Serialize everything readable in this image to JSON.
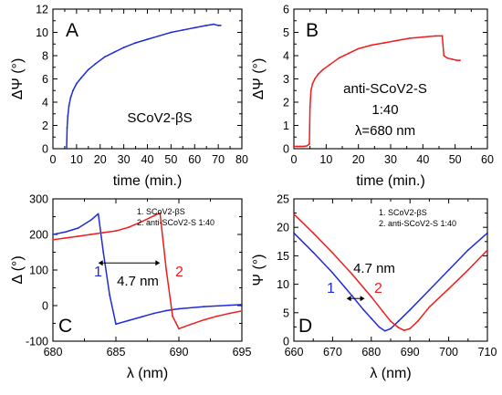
{
  "colors": {
    "blue": "#1f2bd6",
    "red": "#ee1c1c",
    "axis": "#000000"
  },
  "chart_data": [
    {
      "id": "A",
      "type": "line",
      "panel_label": "A",
      "xlabel": "time (min.)",
      "ylabel": "ΔΨ (°)",
      "xlim": [
        0,
        80
      ],
      "ylim": [
        0,
        12
      ],
      "xticks": [
        "0",
        "10",
        "20",
        "30",
        "40",
        "50",
        "60",
        "70",
        "80"
      ],
      "yticks": [
        "0",
        "2",
        "4",
        "6",
        "8",
        "10",
        "12"
      ],
      "annotations": [
        "SCoV2-βS"
      ],
      "series": [
        {
          "color": "#1f2bd6",
          "x": [
            5.8,
            6.0,
            6.3,
            6.8,
            7.5,
            8.5,
            10,
            12,
            15,
            18,
            22,
            26,
            30,
            35,
            40,
            45,
            50,
            55,
            60,
            65,
            68,
            70,
            71
          ],
          "y": [
            0,
            1.8,
            2.8,
            3.7,
            4.4,
            5.0,
            5.6,
            6.1,
            6.8,
            7.3,
            7.9,
            8.3,
            8.7,
            9.1,
            9.4,
            9.7,
            10.0,
            10.2,
            10.4,
            10.6,
            10.7,
            10.6,
            10.6
          ]
        }
      ]
    },
    {
      "id": "B",
      "type": "line",
      "panel_label": "B",
      "xlabel": "time (min.)",
      "ylabel": "ΔΨ (°)",
      "xlim": [
        0,
        60
      ],
      "ylim": [
        0,
        6
      ],
      "xticks": [
        "0",
        "10",
        "20",
        "30",
        "40",
        "50",
        "60"
      ],
      "yticks": [
        "0",
        "1",
        "2",
        "3",
        "4",
        "5",
        "6"
      ],
      "annotations": [
        "anti-SCoV2-S",
        "1:40",
        "λ=680 nm"
      ],
      "series": [
        {
          "color": "#ee1c1c",
          "x": [
            0,
            1,
            2,
            3,
            4,
            4.8,
            5.0,
            5.3,
            5.8,
            6.5,
            7.5,
            9,
            11,
            14,
            17,
            20,
            24,
            28,
            32,
            36,
            40,
            44,
            46,
            46.5,
            47.5,
            49,
            50.5,
            51.5
          ],
          "y": [
            0.1,
            0.1,
            0.1,
            0.1,
            0.12,
            0.2,
            1.8,
            2.5,
            2.8,
            3.0,
            3.2,
            3.4,
            3.6,
            3.9,
            4.1,
            4.3,
            4.45,
            4.55,
            4.65,
            4.75,
            4.8,
            4.85,
            4.85,
            4.0,
            3.9,
            3.85,
            3.8,
            3.8
          ]
        }
      ]
    },
    {
      "id": "C",
      "type": "line",
      "panel_label": "C",
      "xlabel": "λ (nm)",
      "ylabel": "Δ (°)",
      "xlim": [
        680,
        695
      ],
      "ylim": [
        -100,
        300
      ],
      "xticks": [
        "680",
        "685",
        "690",
        "695"
      ],
      "yticks": [
        "-100",
        "0",
        "100",
        "200",
        "300"
      ],
      "legend": [
        "1. SCoV2-βS",
        "2. anti-SCoV2-S 1:40"
      ],
      "legend_position": "top-right",
      "annotations": [
        "4.7 nm"
      ],
      "curve_labels": [
        "1",
        "2"
      ],
      "series": [
        {
          "color": "#1f2bd6",
          "x": [
            680,
            681,
            682,
            683,
            683.6,
            684.0,
            684.5,
            685.0,
            686,
            687,
            688,
            689,
            690,
            692,
            694,
            695
          ],
          "y": [
            200,
            207,
            218,
            240,
            258,
            150,
            30,
            -52,
            -42,
            -32,
            -22,
            -14,
            -9,
            -3,
            1,
            3
          ]
        },
        {
          "color": "#ee1c1c",
          "x": [
            680,
            681,
            682,
            683,
            684,
            685,
            686,
            687,
            688,
            688.5,
            689,
            689.5,
            690,
            691,
            692,
            693,
            694,
            695
          ],
          "y": [
            185,
            190,
            195,
            200,
            205,
            210,
            220,
            235,
            252,
            260,
            100,
            -30,
            -65,
            -52,
            -40,
            -30,
            -22,
            -15
          ]
        }
      ]
    },
    {
      "id": "D",
      "type": "line",
      "panel_label": "D",
      "xlabel": "λ (nm)",
      "ylabel": "Ψ (°)",
      "xlim": [
        660,
        710
      ],
      "ylim": [
        0,
        25
      ],
      "xticks": [
        "660",
        "670",
        "680",
        "690",
        "700",
        "710"
      ],
      "yticks": [
        "0",
        "5",
        "10",
        "15",
        "20",
        "25"
      ],
      "legend": [
        "1. SCoV2-βS",
        "2. anti-SCoV2-S 1:40"
      ],
      "legend_position": "top-right",
      "annotations": [
        "4.7 nm"
      ],
      "curve_labels": [
        "1",
        "2"
      ],
      "series": [
        {
          "color": "#1f2bd6",
          "x": [
            660,
            665,
            670,
            675,
            678,
            680,
            682,
            683.5,
            685,
            687,
            690,
            695,
            700,
            705,
            710
          ],
          "y": [
            19,
            15.6,
            12.0,
            8.0,
            5.5,
            4.0,
            2.5,
            1.8,
            2.2,
            3.5,
            5.5,
            9.0,
            12.5,
            16.0,
            19.0
          ]
        },
        {
          "color": "#ee1c1c",
          "x": [
            660,
            665,
            670,
            675,
            680,
            683,
            685,
            687,
            688.5,
            690,
            692,
            695,
            700,
            705,
            710
          ],
          "y": [
            22.3,
            19.0,
            15.5,
            11.8,
            7.8,
            5.2,
            3.5,
            2.4,
            1.9,
            2.2,
            3.5,
            6.0,
            9.2,
            12.5,
            16.0
          ]
        }
      ]
    }
  ]
}
